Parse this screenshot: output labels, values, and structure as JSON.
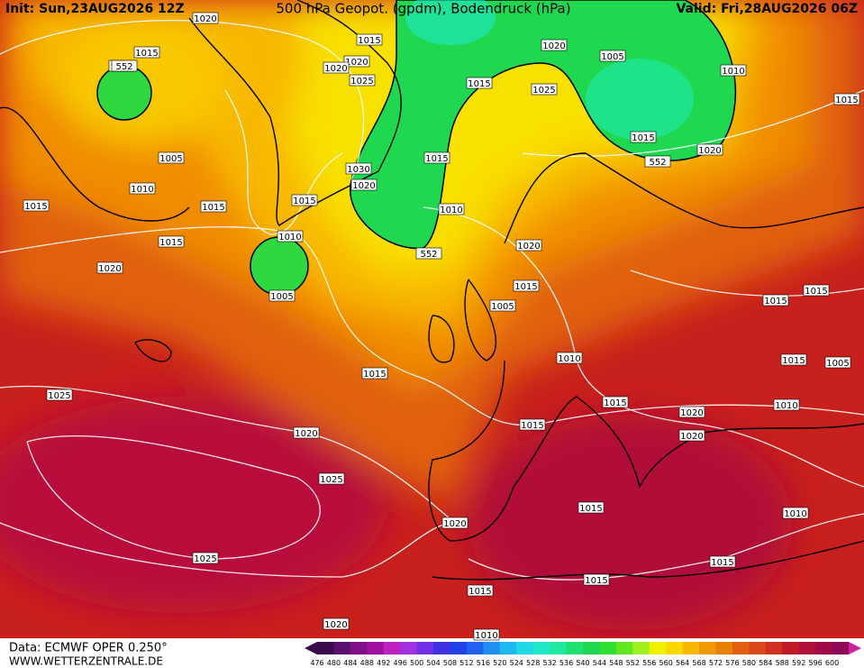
{
  "header": {
    "init": "Init: Sun,23AUG2026 12Z",
    "title": "500 hPa Geopot. (gpdm), Bodendruck (hPa)",
    "valid": "Valid: Fri,28AUG2026 06Z"
  },
  "footer": {
    "data": "Data: ECMWF OPER 0.250°",
    "site": "WWW.WETTERZENTRALE.DE"
  },
  "isobar_labels": [
    "1020",
    "1015",
    "1020",
    "1020",
    "1025",
    "1015",
    "1010",
    "1020",
    "1005",
    "1010",
    "1015",
    "1025",
    "1015",
    "1020",
    "552",
    "1015",
    "1005",
    "1030",
    "1015",
    "1020",
    "1010",
    "1015",
    "1015",
    "1015",
    "1010",
    "1010",
    "1015",
    "552",
    "1020",
    "1020",
    "1005",
    "1015",
    "1005",
    "1015",
    "1015",
    "1010",
    "1015",
    "1015",
    "1005",
    "1025",
    "1015",
    "1010",
    "1020",
    "1015",
    "1020",
    "1020",
    "1025",
    "1015",
    "1010",
    "1020",
    "1025",
    "1015",
    "1015",
    "1015",
    "1020",
    "1010",
    "552"
  ],
  "colorbar": {
    "labels": [
      476,
      480,
      484,
      488,
      492,
      496,
      500,
      504,
      508,
      512,
      516,
      520,
      524,
      528,
      532,
      536,
      540,
      544,
      548,
      552,
      556,
      560,
      564,
      568,
      572,
      576,
      580,
      584,
      588,
      592,
      596,
      600
    ],
    "colors": [
      "#3a0a4a",
      "#5a1070",
      "#80108a",
      "#a010a0",
      "#c020c0",
      "#a030e0",
      "#7030e8",
      "#4030e0",
      "#2040e8",
      "#2060f0",
      "#2090f0",
      "#20b8f0",
      "#20d8e8",
      "#20e8c8",
      "#20e8a0",
      "#20e070",
      "#20d850",
      "#30e030",
      "#60e820",
      "#a0f020",
      "#f0f000",
      "#f8d800",
      "#f8b800",
      "#f09800",
      "#e88000",
      "#e06010",
      "#d84818",
      "#d03020",
      "#c01c28",
      "#b01038",
      "#a00848",
      "#900858",
      "#d020a0"
    ]
  }
}
